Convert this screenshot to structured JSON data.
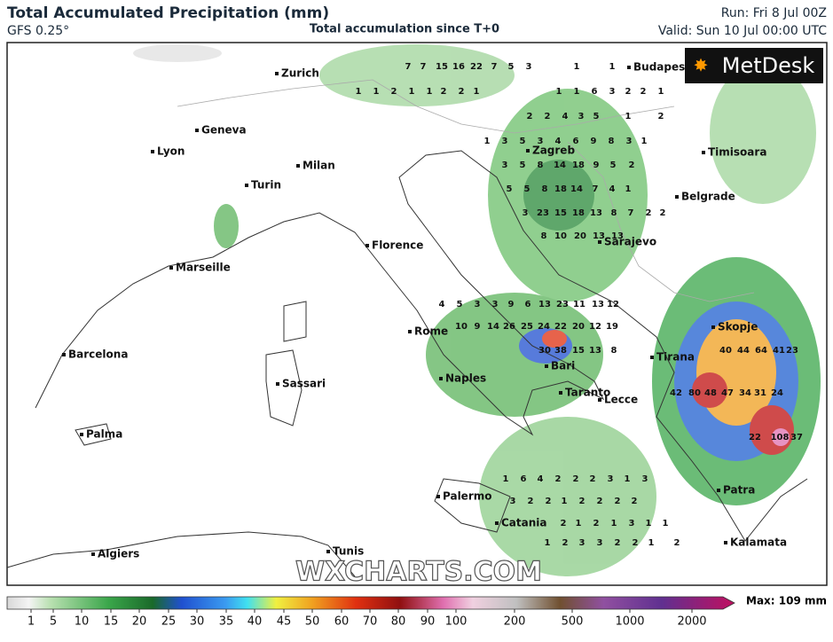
{
  "header": {
    "title": "Total Accumulated Precipitation (mm)",
    "model": "GFS 0.25°",
    "subtitle": "Total accumulation since T+0",
    "run": "Run: Fri 8 Jul 00Z",
    "valid": "Valid: Sun 10 Jul 00:00 UTC"
  },
  "logo": "MetDesk",
  "watermark": "WXCHARTS.COM",
  "cities": [
    "Zurich",
    "Geneva",
    "Lyon",
    "Milan",
    "Turin",
    "Marseille",
    "Florence",
    "Rome",
    "Barcelona",
    "Sassari",
    "Naples",
    "Bari",
    "Taranto",
    "Lecce",
    "Palma",
    "Palermo",
    "Catania",
    "Algiers",
    "Tunis",
    "Budapest",
    "Zagreb",
    "Belgrade",
    "Sarajevo",
    "Timisoara",
    "Skopje",
    "Tirana",
    "Patra",
    "Kalamata"
  ],
  "grid_values": [
    7,
    7,
    15,
    16,
    22,
    7,
    5,
    3,
    1,
    1,
    1,
    1,
    2,
    1,
    1,
    2,
    2,
    1,
    1,
    1,
    6,
    3,
    2,
    2,
    1,
    2,
    2,
    4,
    3,
    5,
    1,
    2,
    1,
    3,
    5,
    3,
    4,
    6,
    9,
    8,
    3,
    1,
    3,
    5,
    8,
    14,
    18,
    9,
    5,
    2,
    5,
    5,
    8,
    18,
    14,
    7,
    4,
    1,
    3,
    23,
    15,
    18,
    13,
    8,
    7,
    2,
    2,
    8,
    10,
    20,
    13,
    13,
    40,
    44,
    64,
    41,
    23,
    42,
    80,
    48,
    47,
    34,
    31,
    24,
    22,
    108,
    37,
    30,
    38,
    15,
    13,
    8,
    10,
    9,
    14,
    26,
    25,
    24,
    22,
    20,
    12,
    19,
    4,
    5,
    3,
    3,
    9,
    6,
    13,
    23,
    11,
    13,
    12,
    3,
    2,
    2,
    1,
    2,
    2,
    2,
    2,
    2,
    1,
    2,
    1,
    3,
    1,
    1,
    1,
    2,
    3,
    3,
    2,
    2,
    1,
    2,
    1,
    6,
    4,
    2,
    2,
    2,
    3,
    1,
    3
  ],
  "colorbar": {
    "ticks": [
      1,
      5,
      10,
      15,
      20,
      25,
      30,
      35,
      40,
      45,
      50,
      60,
      70,
      80,
      90,
      100,
      200,
      500,
      1000,
      2000
    ],
    "max_label": "Max: 109 mm"
  }
}
